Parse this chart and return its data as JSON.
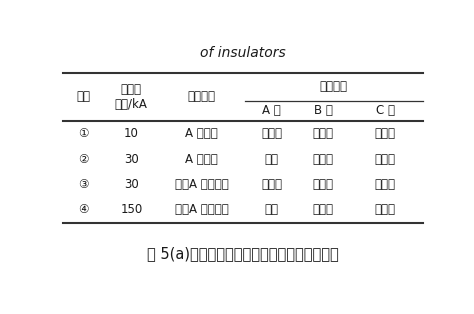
{
  "title_top": "of insulators",
  "caption": "图 5(a)为绕击未闪络情况下的导线电压波形。",
  "col1_header": "工况",
  "col2_header_line1": "雷电流",
  "col2_header_line2": "幅值/kA",
  "col3_header": "雷击位置",
  "col4_header": "闪络情况",
  "col5_header": "A 相",
  "col6_header": "B 相",
  "col7_header": "C 相",
  "rows": [
    [
      "①",
      "10",
      "A 相导线",
      "未闪络",
      "未闪络",
      "未闪络"
    ],
    [
      "②",
      "30",
      "A 相导线",
      "闪络",
      "未闪络",
      "未闪络"
    ],
    [
      "③",
      "30",
      "塔顶A 相俧羊角",
      "未闪络",
      "未闪络",
      "未闪络"
    ],
    [
      "④",
      "150",
      "塔顶A 相俧羊角",
      "闪络",
      "未闪络",
      "未闪络"
    ]
  ],
  "bg_color": "#ffffff",
  "text_color": "#1a1a1a",
  "line_color": "#333333",
  "font_size": 8.5,
  "title_font_size": 10,
  "caption_font_size": 10.5
}
